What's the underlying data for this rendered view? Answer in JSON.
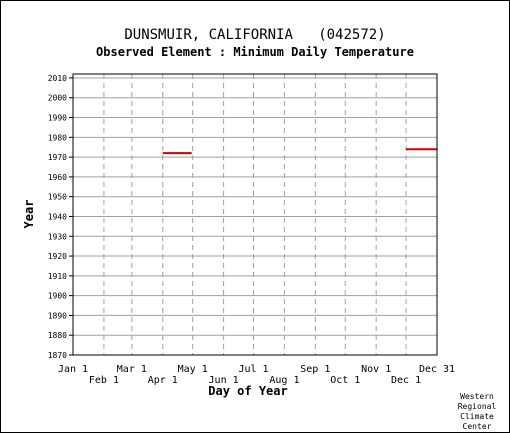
{
  "chart_data": {
    "type": "line",
    "title": "DUNSMUIR, CALIFORNIA   (042572)",
    "subtitle": "Observed Element : Minimum Daily Temperature",
    "xlabel": "Day of Year",
    "ylabel": "Year",
    "xlim": [
      1,
      366
    ],
    "ylim": [
      1870,
      2012
    ],
    "grid": true,
    "yticks": [
      1870,
      1880,
      1890,
      1900,
      1910,
      1920,
      1930,
      1940,
      1950,
      1960,
      1970,
      1980,
      1990,
      2000,
      2010
    ],
    "xticks": [
      {
        "label": "Jan 1",
        "day": 1,
        "row": "upper"
      },
      {
        "label": "Feb 1",
        "day": 32,
        "row": "lower"
      },
      {
        "label": "Mar 1",
        "day": 60,
        "row": "upper"
      },
      {
        "label": "Apr 1",
        "day": 91,
        "row": "lower"
      },
      {
        "label": "May 1",
        "day": 121,
        "row": "upper"
      },
      {
        "label": "Jun 1",
        "day": 152,
        "row": "lower"
      },
      {
        "label": "Jul 1",
        "day": 182,
        "row": "upper"
      },
      {
        "label": "Aug 1",
        "day": 213,
        "row": "lower"
      },
      {
        "label": "Sep 1",
        "day": 244,
        "row": "upper"
      },
      {
        "label": "Oct 1",
        "day": 274,
        "row": "lower"
      },
      {
        "label": "Nov 1",
        "day": 305,
        "row": "upper"
      },
      {
        "label": "Dec 1",
        "day": 335,
        "row": "lower"
      },
      {
        "label": "Dec 31",
        "day": 366,
        "row": "upper"
      }
    ],
    "series": [
      {
        "color": "#cc0000",
        "segments": [
          {
            "year": 1972,
            "start_day": 91,
            "end_day": 120
          },
          {
            "year": 1974,
            "start_day": 335,
            "end_day": 366
          }
        ]
      }
    ]
  },
  "credit": [
    "Western",
    "Regional",
    "Climate",
    "Center"
  ]
}
